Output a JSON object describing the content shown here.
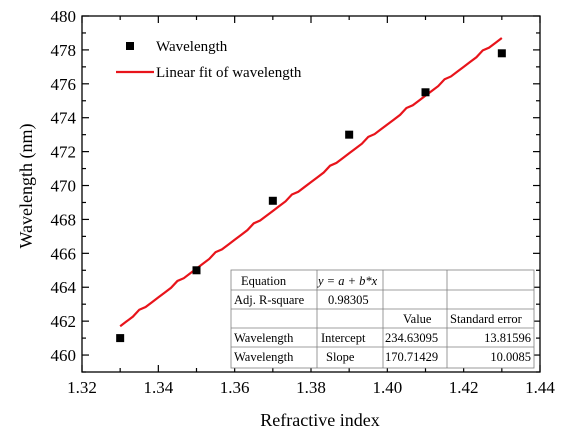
{
  "chart_data": {
    "type": "scatter",
    "xlabel": "Refractive index",
    "ylabel": "Wavelength (nm)",
    "xlim": [
      1.32,
      1.44
    ],
    "ylim": [
      459,
      480
    ],
    "x_ticks": [
      "1.32",
      "1.34",
      "1.36",
      "1.38",
      "1.40",
      "1.42",
      "1.44"
    ],
    "y_ticks": [
      "460",
      "462",
      "464",
      "466",
      "468",
      "470",
      "472",
      "474",
      "476",
      "478",
      "480"
    ],
    "series": [
      {
        "name": "Wavelength",
        "kind": "scatter",
        "marker": "square",
        "color": "#000000",
        "x": [
          1.33,
          1.35,
          1.37,
          1.39,
          1.41,
          1.43
        ],
        "y": [
          461.0,
          465.0,
          469.1,
          473.0,
          475.5,
          477.8
        ]
      },
      {
        "name": "Linear fit of wavelength",
        "kind": "line",
        "color": "#e8141b",
        "x": [
          1.33,
          1.43
        ],
        "y": [
          461.7,
          478.7
        ]
      }
    ],
    "legend": {
      "position": "top-left",
      "items": [
        "Wavelength",
        "Linear fit of wavelength"
      ]
    },
    "grid": false,
    "fit_table": {
      "position": "bottom-right",
      "equation_label": "Equation",
      "equation": "y = a + b*x",
      "adj_r_square_label": "Adj. R-square",
      "adj_r_square": "0.98305",
      "header": [
        "",
        "",
        "Value",
        "Standard error"
      ],
      "rows": [
        [
          "Wavelength",
          "Intercept",
          "234.63095",
          "13.81596"
        ],
        [
          "Wavelength",
          "Slope",
          "170.71429",
          "10.0085"
        ]
      ]
    }
  }
}
